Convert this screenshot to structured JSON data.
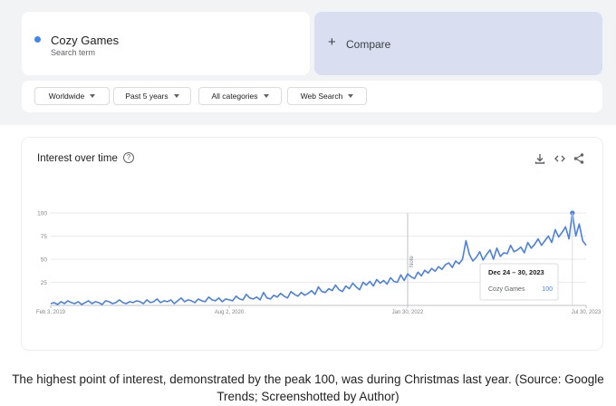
{
  "search": {
    "term": "Cozy Games",
    "subtitle": "Search term",
    "compare_label": "Compare",
    "compare_icon": "plus-icon",
    "dot_color": "#4285f4"
  },
  "filters": [
    {
      "label": "Worldwide"
    },
    {
      "label": "Past 5 years"
    },
    {
      "label": "All categories"
    },
    {
      "label": "Web Search"
    }
  ],
  "chart_card": {
    "title": "Interest over time",
    "icons": [
      "help-icon",
      "download-icon",
      "embed-icon",
      "share-icon"
    ]
  },
  "chart_data": {
    "type": "line",
    "title": "",
    "xlabel": "",
    "ylabel": "",
    "x_tick_labels": [
      "Feb 3, 2019",
      "Aug 2, 2020",
      "Jan 30, 2022",
      "Jul 30, 2023"
    ],
    "y_tick_labels": [
      "100",
      "75",
      "50",
      "25"
    ],
    "ylim": [
      0,
      100
    ],
    "grid": true,
    "note_label": "Note",
    "series": [
      {
        "name": "Cozy Games",
        "color": "#4a80e0",
        "values": [
          2,
          3,
          1,
          4,
          2,
          5,
          3,
          2,
          4,
          1,
          3,
          5,
          2,
          4,
          3,
          1,
          5,
          4,
          2,
          3,
          6,
          3,
          2,
          4,
          3,
          5,
          4,
          2,
          6,
          3,
          4,
          7,
          3,
          5,
          4,
          6,
          2,
          5,
          8,
          4,
          6,
          5,
          3,
          7,
          5,
          4,
          9,
          6,
          5,
          8,
          4,
          7,
          6,
          5,
          10,
          7,
          6,
          12,
          8,
          7,
          9,
          6,
          14,
          8,
          7,
          11,
          9,
          13,
          10,
          8,
          15,
          12,
          10,
          14,
          11,
          13,
          16,
          12,
          20,
          15,
          14,
          18,
          16,
          22,
          17,
          15,
          21,
          18,
          24,
          20,
          17,
          25,
          22,
          26,
          21,
          28,
          24,
          27,
          23,
          30,
          26,
          25,
          33,
          27,
          34,
          31,
          29,
          36,
          32,
          38,
          35,
          40,
          37,
          42,
          39,
          44,
          46,
          41,
          48,
          45,
          50,
          70,
          55,
          48,
          52,
          58,
          49,
          55,
          60,
          50,
          62,
          53,
          57,
          56,
          65,
          58,
          60,
          63,
          57,
          68,
          62,
          66,
          72,
          65,
          70,
          75,
          68,
          82,
          74,
          79,
          85,
          72,
          100,
          75,
          88,
          70,
          65
        ]
      }
    ],
    "tooltip": {
      "date_range": "Dec 24 – 30, 2023",
      "series_name": "Cozy Games",
      "value": "100"
    }
  },
  "caption": "The highest point of interest, demonstrated by the peak 100, was during Christmas last year. (Source: Google Trends; Screenshotted by Author)"
}
